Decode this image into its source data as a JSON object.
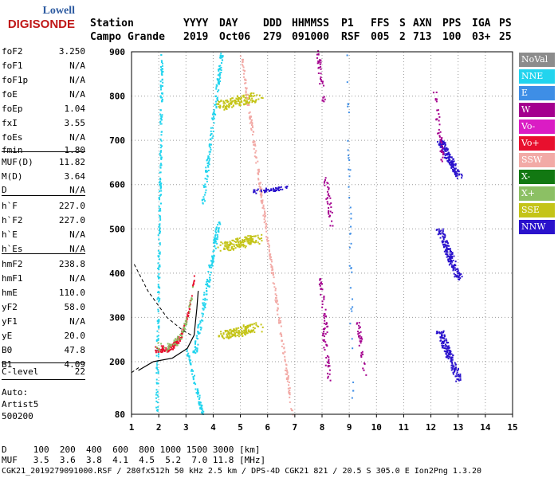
{
  "logo": {
    "line1": "Lowell",
    "line2": "DIGISONDE"
  },
  "header": {
    "labels": [
      "Station",
      "YYYY",
      "DAY",
      "DDD",
      "HHMMSS",
      "P1",
      "FFS",
      "S",
      "AXN",
      "PPS",
      "IGA",
      "PS"
    ],
    "values": [
      "Campo Grande",
      "2019",
      "Oct06",
      "279",
      "091000",
      "RSF",
      "005",
      "2",
      "713",
      "100",
      "03+",
      "25"
    ]
  },
  "params": [
    {
      "name": "foF2",
      "value": "3.250"
    },
    {
      "name": "foF1",
      "value": "N/A"
    },
    {
      "name": "foF1p",
      "value": "N/A"
    },
    {
      "name": "foE",
      "value": "N/A"
    },
    {
      "name": "foEp",
      "value": "1.04"
    },
    {
      "name": "fxI",
      "value": "3.55"
    },
    {
      "name": "foEs",
      "value": "N/A"
    },
    {
      "name": "fmin",
      "value": "1.80"
    },
    {
      "name": "MUF(D)",
      "value": "11.82"
    },
    {
      "name": "M(D)",
      "value": "3.64"
    },
    {
      "name": "D",
      "value": "N/A"
    },
    {
      "name": "h`F",
      "value": "227.0"
    },
    {
      "name": "h`F2",
      "value": "227.0"
    },
    {
      "name": "h`E",
      "value": "N/A"
    },
    {
      "name": "h`Es",
      "value": "N/A"
    },
    {
      "name": "hmF2",
      "value": "238.8"
    },
    {
      "name": "hmF1",
      "value": "N/A"
    },
    {
      "name": "hmE",
      "value": "110.0"
    },
    {
      "name": "yF2",
      "value": "58.0"
    },
    {
      "name": "yF1",
      "value": "N/A"
    },
    {
      "name": "yE",
      "value": "20.0"
    },
    {
      "name": "B0",
      "value": "47.8"
    },
    {
      "name": "B1",
      "value": "4.09"
    },
    {
      "name": "C-level",
      "value": "22"
    }
  ],
  "auto": {
    "line1": "Auto:",
    "line2": "Artist5",
    "line3": "500200"
  },
  "legend": [
    {
      "label": "NoVal",
      "color": "#8c8c8c"
    },
    {
      "label": "NNE",
      "color": "#22d4ee"
    },
    {
      "label": "E",
      "color": "#3e8ee6"
    },
    {
      "label": "W",
      "color": "#a4008e"
    },
    {
      "label": "Vo-",
      "color": "#da1cc4"
    },
    {
      "label": "Vo+",
      "color": "#e8102e"
    },
    {
      "label": "SSW",
      "color": "#f2aaa6"
    },
    {
      "label": "X-",
      "color": "#127812"
    },
    {
      "label": "X+",
      "color": "#8cc064"
    },
    {
      "label": "SSE",
      "color": "#c4c418"
    },
    {
      "label": "NNW",
      "color": "#2a12cc"
    }
  ],
  "axes": {
    "x_ticks": [
      "1",
      "2",
      "3",
      "4",
      "5",
      "6",
      "7",
      "8",
      "9",
      "10",
      "11",
      "12",
      "13",
      "14",
      "15"
    ],
    "y_ticks": [
      "80",
      "200",
      "300",
      "400",
      "500",
      "600",
      "700",
      "800",
      "900"
    ]
  },
  "footer": {
    "d_row": "D     100  200  400  600  800 1000 1500 3000 [km]",
    "muf_row": "MUF   3.5  3.6  3.8  4.1  4.5  5.2  7.0 11.8 [MHz]",
    "file_row": "CGK21_2019279091000.RSF / 280fx512h 50 kHz 2.5 km / DPS-4D CGK21 821 / 20.5 S 305.0 E Ion2Png 1.3.20"
  }
}
